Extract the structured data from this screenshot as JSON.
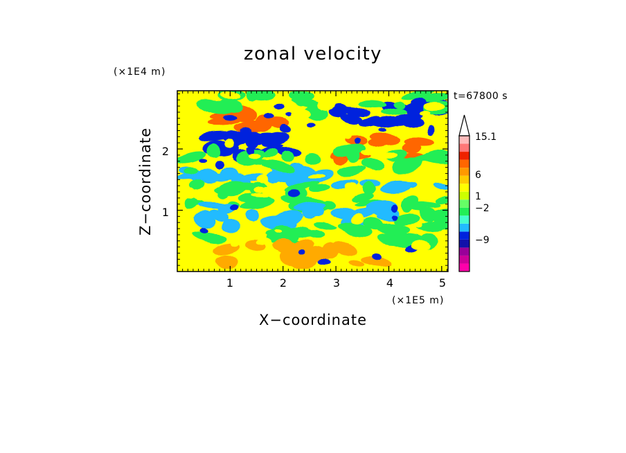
{
  "chart_data": {
    "type": "heatmap",
    "title": "zonal velocity",
    "xlabel": "X−coordinate",
    "ylabel": "Z−coordinate",
    "x_scale_label": "(×1E5 m)",
    "y_scale_label": "(×1E4 m)",
    "time_label": "t=67800 s",
    "xlim": [
      0.0,
      5.12
    ],
    "ylim": [
      0.0,
      2.95
    ],
    "x_ticks": [
      1,
      2,
      3,
      4,
      5
    ],
    "y_ticks": [
      1,
      2
    ],
    "colorbar": {
      "labels": [
        "15.1",
        "6",
        "1",
        "−2",
        "−9"
      ],
      "colors": [
        "#ff00aa",
        "#cc0099",
        "#990099",
        "#1111aa",
        "#0022dd",
        "#22bbff",
        "#44ffcc",
        "#22ee55",
        "#66ff66",
        "#ccff00",
        "#ffff00",
        "#ffcc00",
        "#ff9900",
        "#ff6600",
        "#ee2200",
        "#ff7777",
        "#ffbbbb"
      ],
      "levels": [
        -15,
        -12,
        -9,
        -6.5,
        -4,
        -2,
        -1,
        0,
        0.5,
        1,
        2,
        3.5,
        6,
        8.5,
        11,
        13,
        15.1
      ]
    },
    "palette": {
      "strong_negative": "#0022dd",
      "negative": "#22bbff",
      "near_zero": "#22ee55",
      "weak_positive": "#ffff00",
      "positive": "#ffaa00",
      "strong_positive": "#ff6600"
    }
  }
}
